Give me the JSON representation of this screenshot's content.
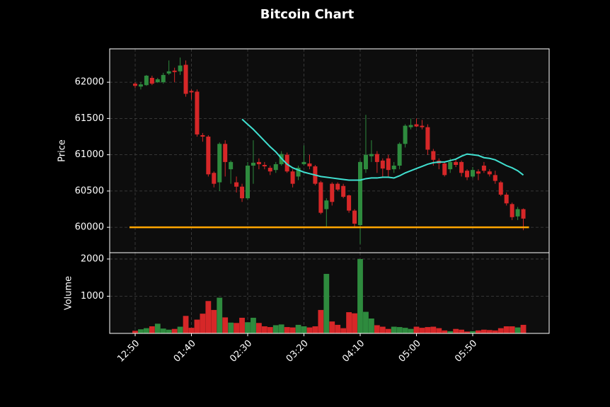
{
  "chart_data": {
    "type": "candlestick",
    "title": "Bitcoin Chart",
    "y_label": "Price",
    "volume_label": "Volume",
    "x": [
      "12:50",
      "12:55",
      "01:00",
      "01:05",
      "01:10",
      "01:15",
      "01:20",
      "01:25",
      "01:30",
      "01:35",
      "01:40",
      "01:45",
      "01:50",
      "01:55",
      "02:00",
      "02:05",
      "02:10",
      "02:15",
      "02:20",
      "02:25",
      "02:30",
      "02:35",
      "02:40",
      "02:45",
      "02:50",
      "02:55",
      "03:00",
      "03:05",
      "03:10",
      "03:15",
      "03:20",
      "03:25",
      "03:30",
      "03:35",
      "03:40",
      "03:45",
      "03:50",
      "03:55",
      "04:00",
      "04:05",
      "04:10",
      "04:15",
      "04:20",
      "04:25",
      "04:30",
      "04:35",
      "04:40",
      "04:45",
      "04:50",
      "04:55",
      "05:00",
      "05:05",
      "05:10",
      "05:15",
      "05:20",
      "05:25",
      "05:30",
      "05:35",
      "05:40",
      "05:45",
      "05:50",
      "05:55",
      "06:00",
      "06:05",
      "06:10",
      "06:15",
      "06:20",
      "06:25",
      "06:30",
      "06:35"
    ],
    "open": [
      61980,
      61940,
      61960,
      62060,
      62000,
      62000,
      62120,
      62160,
      62150,
      62240,
      61880,
      61870,
      61270,
      61250,
      60750,
      60620,
      61150,
      60800,
      60620,
      60560,
      60400,
      60850,
      60900,
      60860,
      60820,
      60790,
      60870,
      61000,
      60770,
      60700,
      60870,
      60880,
      60840,
      60620,
      60250,
      60600,
      60600,
      60570,
      60440,
      60230,
      60030,
      60800,
      60980,
      61010,
      60920,
      60950,
      60800,
      60850,
      61150,
      61380,
      61420,
      61400,
      61380,
      61050,
      60920,
      60880,
      60800,
      60900,
      60900,
      60780,
      60700,
      60770,
      60850,
      60770,
      60720,
      60620,
      60450,
      60320,
      60150,
      60250
    ],
    "high": [
      62000,
      62000,
      62100,
      62090,
      62060,
      62130,
      62300,
      62200,
      62340,
      62300,
      61900,
      61900,
      61300,
      61270,
      60770,
      61170,
      61200,
      60920,
      60700,
      60600,
      60900,
      61200,
      60950,
      60900,
      60850,
      60900,
      61050,
      61030,
      60800,
      60850,
      61130,
      61000,
      60860,
      60640,
      60400,
      60620,
      60620,
      60600,
      60450,
      60250,
      60920,
      61550,
      61200,
      61050,
      60950,
      61000,
      60900,
      61170,
      61420,
      61500,
      61500,
      61480,
      61420,
      61080,
      60950,
      60900,
      60950,
      60950,
      60920,
      60800,
      60830,
      60800,
      60900,
      60800,
      60780,
      60640,
      60480,
      60340,
      60280,
      60260
    ],
    "low": [
      61920,
      61900,
      61950,
      61960,
      61990,
      61980,
      62100,
      62000,
      62100,
      61800,
      61760,
      61250,
      61180,
      60700,
      60550,
      60500,
      60700,
      60600,
      60480,
      60350,
      60380,
      60600,
      60800,
      60800,
      60720,
      60750,
      60850,
      60750,
      60550,
      60650,
      60850,
      60800,
      60580,
      60180,
      60000,
      60300,
      60500,
      60400,
      60200,
      60000,
      59770,
      60750,
      60900,
      60750,
      60700,
      60700,
      60750,
      60800,
      61100,
      61350,
      61380,
      61350,
      61000,
      60850,
      60800,
      60700,
      60750,
      60830,
      60700,
      60650,
      60680,
      60650,
      60750,
      60700,
      60600,
      60430,
      60300,
      60100,
      60100,
      59960
    ],
    "close": [
      61950,
      61970,
      62090,
      61980,
      62040,
      62100,
      62150,
      62140,
      62230,
      61840,
      61860,
      61280,
      61250,
      60730,
      60600,
      61150,
      60900,
      60900,
      60560,
      60400,
      60850,
      60890,
      60870,
      60840,
      60770,
      60870,
      61010,
      60770,
      60600,
      60820,
      60900,
      60840,
      60600,
      60200,
      60370,
      60350,
      60520,
      60420,
      60230,
      60050,
      60900,
      61000,
      61010,
      60900,
      60810,
      60790,
      60850,
      61150,
      61400,
      61410,
      61390,
      61380,
      61070,
      60930,
      60880,
      60720,
      60900,
      60860,
      60750,
      60690,
      60790,
      60740,
      60780,
      60730,
      60640,
      60450,
      60330,
      60140,
      60250,
      60120
    ],
    "volume": [
      70,
      110,
      140,
      190,
      260,
      130,
      100,
      120,
      180,
      470,
      150,
      370,
      530,
      870,
      630,
      960,
      430,
      290,
      280,
      420,
      300,
      420,
      280,
      190,
      170,
      220,
      240,
      170,
      160,
      230,
      190,
      160,
      190,
      630,
      1600,
      320,
      230,
      140,
      570,
      540,
      2000,
      580,
      400,
      220,
      180,
      120,
      180,
      170,
      150,
      120,
      180,
      150,
      170,
      180,
      140,
      80,
      60,
      120,
      100,
      50,
      60,
      80,
      100,
      90,
      80,
      140,
      190,
      190,
      160,
      230
    ],
    "sma": {
      "color": "#40e0d0",
      "values": [
        null,
        null,
        null,
        null,
        null,
        null,
        null,
        null,
        null,
        null,
        null,
        null,
        null,
        null,
        null,
        null,
        null,
        null,
        null,
        61490,
        61420,
        61350,
        61270,
        61190,
        61110,
        61040,
        60950,
        60870,
        60820,
        60790,
        60760,
        60740,
        60720,
        60700,
        60690,
        60680,
        60670,
        60660,
        60650,
        60650,
        60650,
        60670,
        60680,
        60680,
        60690,
        60690,
        60680,
        60710,
        60750,
        60780,
        60810,
        60840,
        60870,
        60890,
        60900,
        60900,
        60920,
        60940,
        60980,
        61010,
        61000,
        60990,
        60960,
        60950,
        60930,
        60890,
        60850,
        60820,
        60780,
        60720
      ]
    },
    "hline": {
      "value": 60000,
      "color": "#ffa500"
    },
    "up_color": "#2e8b3e",
    "down_color": "#d62728",
    "ylim": [
      59650,
      62460
    ],
    "yticks": [
      60000,
      60500,
      61000,
      61500,
      62000
    ],
    "volume_ylim": [
      0,
      2170
    ],
    "volume_yticks": [
      1000,
      2000
    ],
    "xticks": [
      "12:50",
      "01:40",
      "02:30",
      "03:20",
      "04:10",
      "05:00",
      "05:50"
    ],
    "grid": true
  }
}
